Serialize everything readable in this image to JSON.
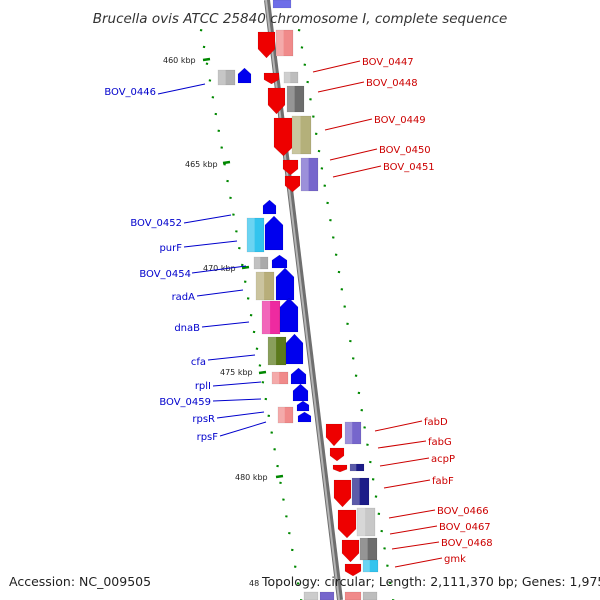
{
  "title": "Brucella ovis ATCC 25840 chromosome I, complete sequence",
  "footer": {
    "accession": "Accession: NC_009505",
    "topology": "Topology: circular; Length: 2,111,370 bp; Genes: 1,975",
    "partial_tick": "48"
  },
  "ticks": [
    "460 kbp",
    "465 kbp",
    "470 kbp",
    "475 kbp",
    "480 kbp"
  ],
  "right_genes": [
    "BOV_0447",
    "BOV_0448",
    "BOV_0449",
    "BOV_0450",
    "BOV_0451",
    "fabD",
    "fabG",
    "acpP",
    "fabF",
    "BOV_0466",
    "BOV_0467",
    "BOV_0468",
    "gmk"
  ],
  "left_genes": [
    "BOV_0446",
    "BOV_0452",
    "purF",
    "BOV_0454",
    "radA",
    "dnaB",
    "cfa",
    "rplI",
    "BOV_0459",
    "rpsR",
    "rpsF"
  ],
  "colors": {
    "label_right": "#cc0000",
    "label_left": "#0000cc",
    "strand_forward": "#ee0000",
    "strand_reverse": "#0000ee",
    "backbone": "#888888",
    "tick_marks": "#008800"
  }
}
